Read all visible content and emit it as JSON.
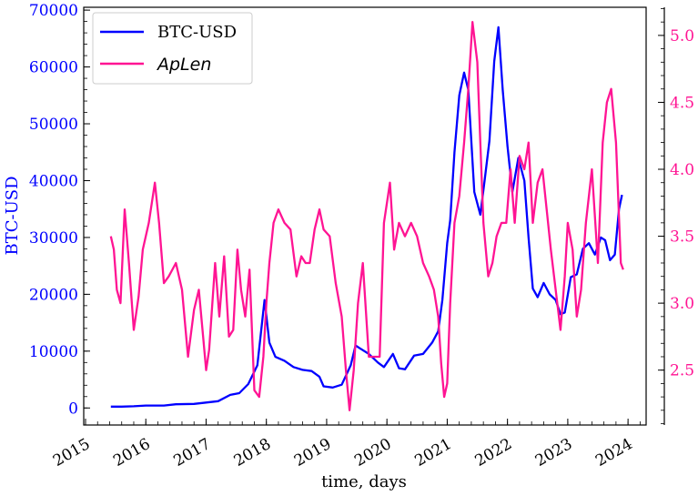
{
  "chart_data": {
    "type": "line",
    "xlabel": "time, days",
    "ylabel_left": "BTC-USD",
    "x_ticks": [
      "2015",
      "2016",
      "2017",
      "2018",
      "2019",
      "2020",
      "2021",
      "2022",
      "2023",
      "2024"
    ],
    "y_left": {
      "ticks": [
        "0",
        "10000",
        "20000",
        "30000",
        "40000",
        "50000",
        "60000",
        "70000"
      ],
      "ylim": [
        -3000,
        70500
      ]
    },
    "y_right": {
      "ticks": [
        "2.5",
        "3.0",
        "3.5",
        "4.0",
        "4.5",
        "5.0"
      ],
      "ylim": [
        2.09,
        5.21
      ]
    },
    "xlim": [
      2014.97,
      2024.3
    ],
    "legend_position": "top-left",
    "colors": {
      "btc": "#0000ff",
      "aplen": "#ff1493"
    },
    "series": [
      {
        "name": "BTC-USD",
        "axis": "left",
        "x": [
          2015.42,
          2015.6,
          2015.8,
          2016.0,
          2016.3,
          2016.5,
          2016.8,
          2017.0,
          2017.2,
          2017.4,
          2017.55,
          2017.7,
          2017.85,
          2017.97,
          2018.05,
          2018.15,
          2018.3,
          2018.45,
          2018.6,
          2018.75,
          2018.88,
          2018.95,
          2019.1,
          2019.25,
          2019.4,
          2019.48,
          2019.55,
          2019.7,
          2019.85,
          2019.95,
          2020.1,
          2020.2,
          2020.3,
          2020.45,
          2020.6,
          2020.75,
          2020.85,
          2020.92,
          2021.0,
          2021.05,
          2021.12,
          2021.2,
          2021.28,
          2021.35,
          2021.45,
          2021.55,
          2021.62,
          2021.7,
          2021.78,
          2021.85,
          2021.92,
          2022.0,
          2022.08,
          2022.18,
          2022.28,
          2022.35,
          2022.42,
          2022.5,
          2022.6,
          2022.7,
          2022.8,
          2022.88,
          2022.95,
          2023.05,
          2023.15,
          2023.25,
          2023.35,
          2023.45,
          2023.55,
          2023.62,
          2023.7,
          2023.78,
          2023.85,
          2023.9
        ],
        "values": [
          240,
          230,
          300,
          430,
          420,
          650,
          720,
          960,
          1200,
          2300,
          2600,
          4200,
          7500,
          19000,
          11500,
          9000,
          8300,
          7200,
          6700,
          6500,
          5500,
          3800,
          3600,
          4100,
          7500,
          11000,
          10500,
          9500,
          8000,
          7200,
          9500,
          7000,
          6800,
          9200,
          9500,
          11500,
          13500,
          19000,
          29000,
          33000,
          45000,
          55000,
          59000,
          56000,
          38000,
          34000,
          40000,
          47000,
          61000,
          67000,
          56000,
          46000,
          38000,
          44000,
          40000,
          30000,
          21000,
          19500,
          22000,
          20000,
          19000,
          16500,
          16800,
          23000,
          23500,
          28000,
          29000,
          27000,
          30000,
          29500,
          26000,
          27000,
          35000,
          37500
        ]
      },
      {
        "name": "ApLen",
        "axis": "right",
        "x": [
          2015.42,
          2015.47,
          2015.52,
          2015.58,
          2015.65,
          2015.72,
          2015.8,
          2015.88,
          2015.95,
          2016.05,
          2016.15,
          2016.22,
          2016.3,
          2016.38,
          2016.5,
          2016.6,
          2016.7,
          2016.8,
          2016.88,
          2016.95,
          2017.0,
          2017.05,
          2017.15,
          2017.22,
          2017.3,
          2017.38,
          2017.45,
          2017.52,
          2017.58,
          2017.65,
          2017.72,
          2017.8,
          2017.88,
          2017.95,
          2018.0,
          2018.05,
          2018.12,
          2018.2,
          2018.3,
          2018.4,
          2018.5,
          2018.58,
          2018.65,
          2018.72,
          2018.8,
          2018.88,
          2018.95,
          2019.05,
          2019.15,
          2019.25,
          2019.32,
          2019.38,
          2019.45,
          2019.52,
          2019.6,
          2019.7,
          2019.8,
          2019.88,
          2019.95,
          2020.05,
          2020.12,
          2020.2,
          2020.3,
          2020.4,
          2020.5,
          2020.6,
          2020.7,
          2020.78,
          2020.85,
          2020.9,
          2020.95,
          2021.0,
          2021.05,
          2021.12,
          2021.2,
          2021.28,
          2021.35,
          2021.42,
          2021.5,
          2021.55,
          2021.6,
          2021.68,
          2021.75,
          2021.82,
          2021.9,
          2021.98,
          2022.05,
          2022.12,
          2022.2,
          2022.28,
          2022.35,
          2022.42,
          2022.5,
          2022.58,
          2022.65,
          2022.72,
          2022.8,
          2022.88,
          2022.95,
          2023.0,
          2023.08,
          2023.15,
          2023.22,
          2023.3,
          2023.4,
          2023.5,
          2023.58,
          2023.65,
          2023.72,
          2023.8,
          2023.88,
          2023.92
        ],
        "values": [
          3.5,
          3.4,
          3.1,
          3.0,
          3.7,
          3.3,
          2.8,
          3.05,
          3.4,
          3.6,
          3.9,
          3.6,
          3.15,
          3.2,
          3.3,
          3.1,
          2.6,
          2.95,
          3.1,
          2.75,
          2.5,
          2.65,
          3.3,
          2.9,
          3.35,
          2.75,
          2.8,
          3.4,
          3.1,
          2.9,
          3.25,
          2.35,
          2.3,
          2.6,
          3.0,
          3.3,
          3.6,
          3.7,
          3.6,
          3.55,
          3.2,
          3.35,
          3.3,
          3.3,
          3.55,
          3.7,
          3.55,
          3.5,
          3.15,
          2.9,
          2.5,
          2.2,
          2.5,
          3.0,
          3.3,
          2.6,
          2.6,
          2.6,
          3.6,
          3.9,
          3.4,
          3.6,
          3.5,
          3.6,
          3.5,
          3.3,
          3.2,
          3.1,
          2.9,
          2.55,
          2.3,
          2.4,
          3.0,
          3.6,
          3.8,
          4.2,
          4.6,
          5.1,
          4.8,
          4.2,
          3.6,
          3.2,
          3.3,
          3.5,
          3.6,
          3.6,
          4.0,
          3.6,
          4.1,
          4.0,
          4.2,
          3.6,
          3.9,
          4.0,
          3.7,
          3.4,
          3.1,
          2.8,
          3.2,
          3.6,
          3.4,
          2.9,
          3.1,
          3.6,
          4.0,
          3.3,
          4.2,
          4.5,
          4.6,
          4.2,
          3.3,
          3.25
        ]
      }
    ]
  }
}
